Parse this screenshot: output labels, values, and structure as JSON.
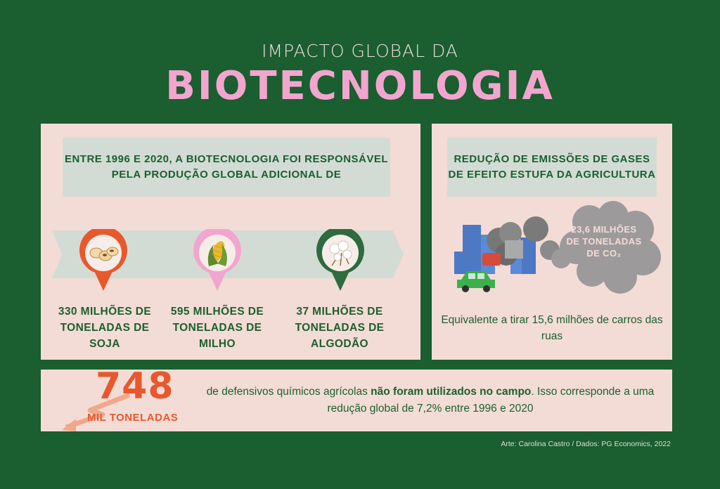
{
  "header": {
    "subtitle": "IMPACTO GLOBAL DA",
    "title": "BIOTECNOLOGIA"
  },
  "left_panel": {
    "heading": "ENTRE 1996 E 2020, A BIOTECNOLOGIA FOI RESPONSÁVEL PELA PRODUÇÃO GLOBAL ADICIONAL DE",
    "items": [
      {
        "label": "330 MILHÕES DE TONELADAS DE SOJA",
        "icon": "soybean-icon",
        "ring_color": "#e8582d"
      },
      {
        "label": "595 MILHÕES DE TONELADAS DE MILHO",
        "icon": "corn-icon",
        "ring_color": "#f2a6cf"
      },
      {
        "label": "37 MILHÕES DE TONELADAS DE ALGODÃO",
        "icon": "cotton-icon",
        "ring_color": "#2e6b3e"
      }
    ]
  },
  "right_panel": {
    "heading": "REDUÇÃO DE EMISSÕES DE GASES DE EFEITO ESTUFA DA AGRICULTURA",
    "cloud_text": "23,6 MILHÕES DE TONELADAS DE CO₂",
    "equivalence": "Equivalente a tirar 15,6 milhões de carros das ruas"
  },
  "bottom_panel": {
    "number": "748",
    "unit": "MIL TONELADAS",
    "text_before": "de defensivos químicos agrícolas ",
    "text_bold": "não foram utilizados no campo",
    "text_after": ". Isso corresponde a uma redução global de 7,2% entre 1996 e 2020"
  },
  "credit": "Arte: Carolina Castro / Dados: PG Economics, 2022",
  "colors": {
    "background": "#1b5e2f",
    "panel": "#f3dcd6",
    "accent_pink": "#f2a6cf",
    "accent_orange": "#e8582d"
  }
}
